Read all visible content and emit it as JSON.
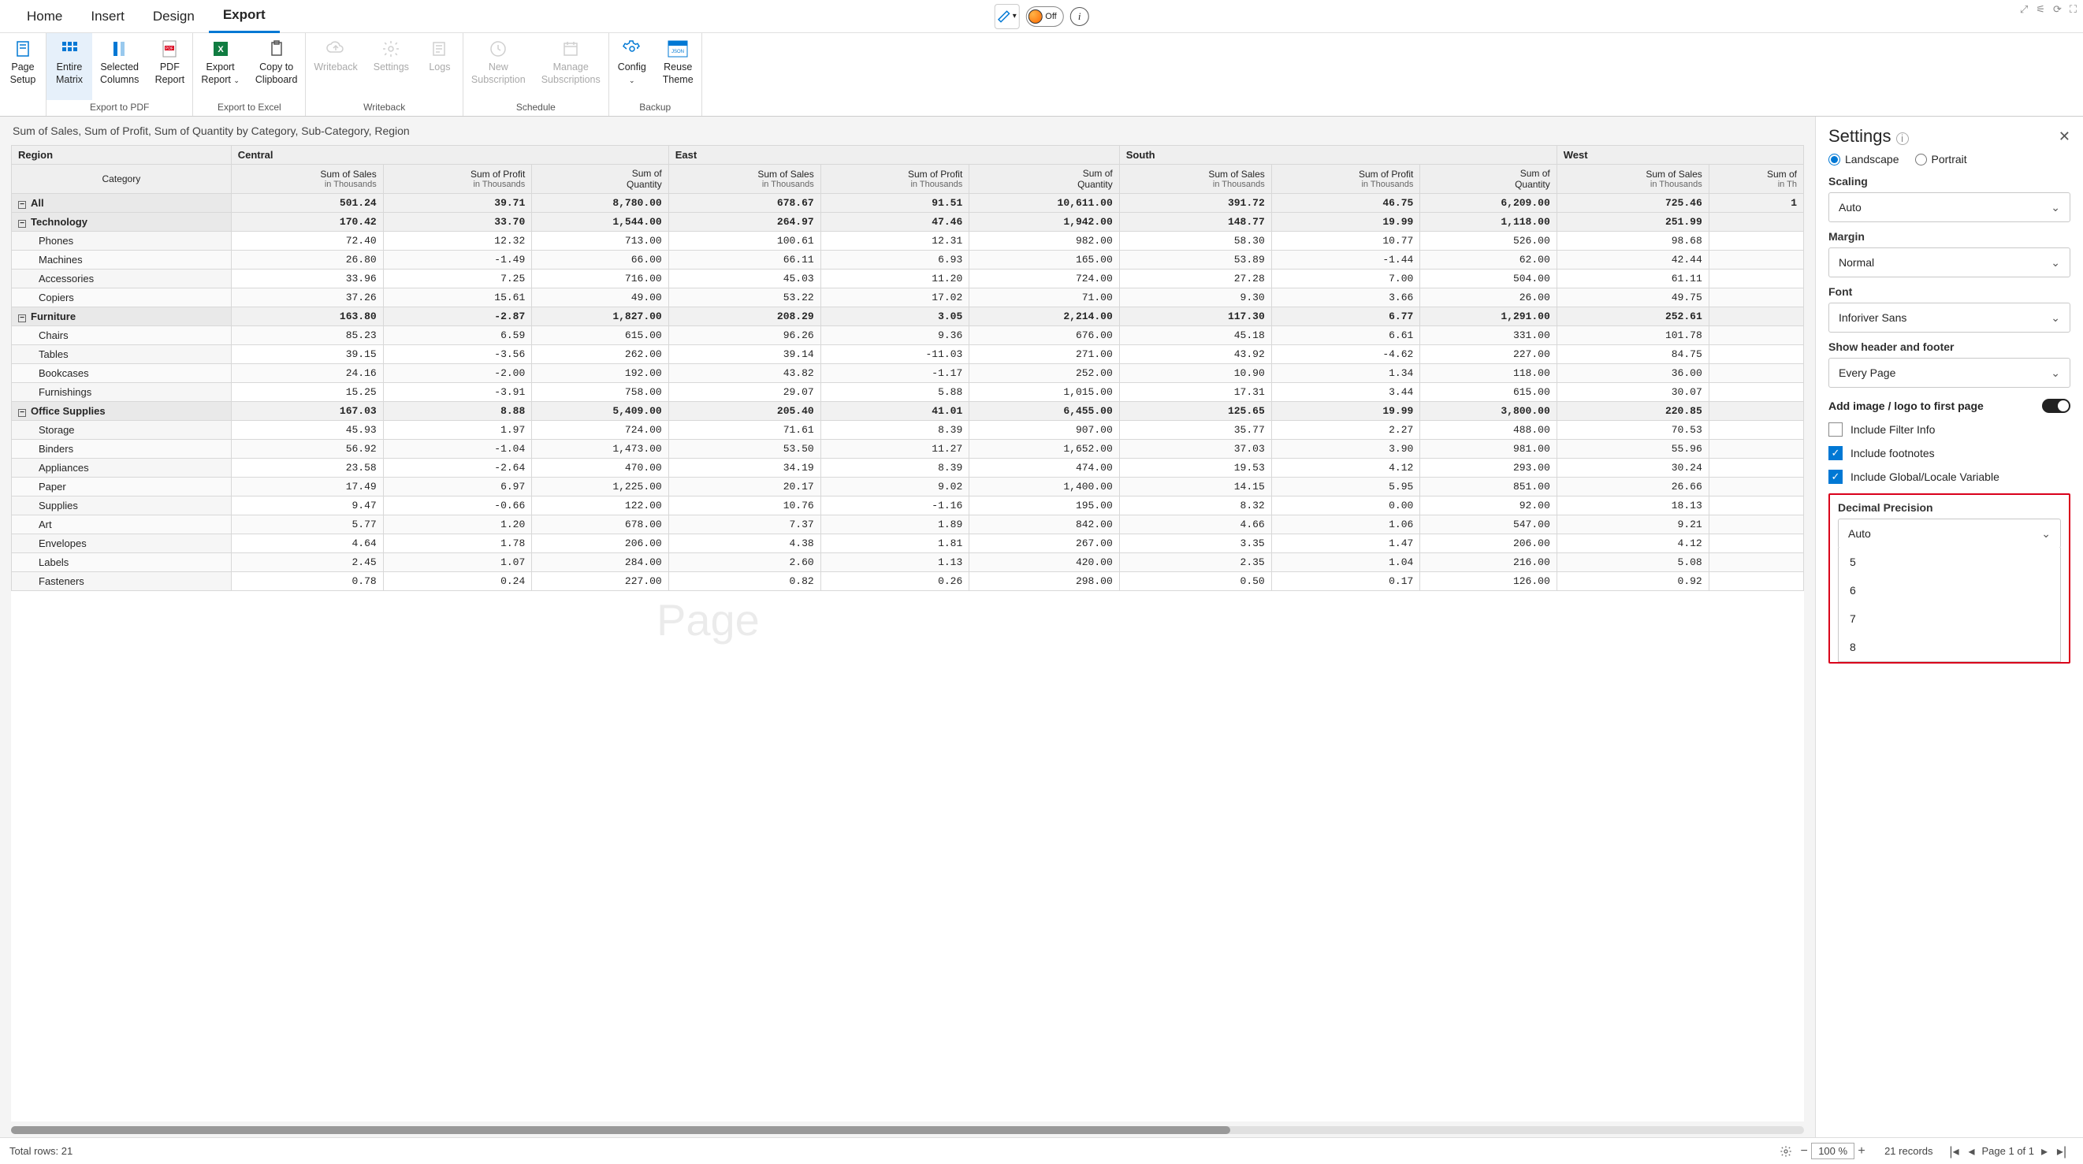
{
  "tabs": {
    "home": "Home",
    "insert": "Insert",
    "design": "Design",
    "export": "Export"
  },
  "topToggle": "Off",
  "ribbon": {
    "pageSetup": "Page\nSetup",
    "entireMatrix": "Entire\nMatrix",
    "selectedColumns": "Selected\nColumns",
    "pdfReport": "PDF\nReport",
    "exportReport": "Export\nReport",
    "copyClipboard": "Copy to\nClipboard",
    "writeback": "Writeback",
    "settings": "Settings",
    "logs": "Logs",
    "newSub": "New\nSubscription",
    "manageSub": "Manage\nSubscriptions",
    "config": "Config",
    "reuseTheme": "Reuse\nTheme",
    "groups": {
      "pdf": "Export to PDF",
      "excel": "Export to Excel",
      "writeback": "Writeback",
      "schedule": "Schedule",
      "backup": "Backup"
    }
  },
  "subtitle": "Sum of Sales, Sum of Profit, Sum of Quantity by Category, Sub-Category, Region",
  "watermark": "Page",
  "headers": {
    "region": "Region",
    "category": "Category",
    "regions": [
      "Central",
      "East",
      "South",
      "West"
    ],
    "measures": [
      {
        "label": "Sum of Sales",
        "unit": "in Thousands"
      },
      {
        "label": "Sum of Profit",
        "unit": "in Thousands"
      },
      {
        "label": "Sum of\nQuantity",
        "unit": ""
      }
    ],
    "westLastCol": {
      "label": "Sum of",
      "unit": "in Th"
    }
  },
  "rows": [
    {
      "type": "group",
      "label": "All",
      "vals": [
        "501.24",
        "39.71",
        "8,780.00",
        "678.67",
        "91.51",
        "10,611.00",
        "391.72",
        "46.75",
        "6,209.00",
        "725.46",
        "1"
      ]
    },
    {
      "type": "group",
      "label": "Technology",
      "vals": [
        "170.42",
        "33.70",
        "1,544.00",
        "264.97",
        "47.46",
        "1,942.00",
        "148.77",
        "19.99",
        "1,118.00",
        "251.99",
        ""
      ]
    },
    {
      "type": "leaf",
      "label": "Phones",
      "vals": [
        "72.40",
        "12.32",
        "713.00",
        "100.61",
        "12.31",
        "982.00",
        "58.30",
        "10.77",
        "526.00",
        "98.68",
        ""
      ]
    },
    {
      "type": "leaf",
      "label": "Machines",
      "vals": [
        "26.80",
        "-1.49",
        "66.00",
        "66.11",
        "6.93",
        "165.00",
        "53.89",
        "-1.44",
        "62.00",
        "42.44",
        ""
      ]
    },
    {
      "type": "leaf",
      "label": "Accessories",
      "vals": [
        "33.96",
        "7.25",
        "716.00",
        "45.03",
        "11.20",
        "724.00",
        "27.28",
        "7.00",
        "504.00",
        "61.11",
        ""
      ]
    },
    {
      "type": "leaf",
      "label": "Copiers",
      "vals": [
        "37.26",
        "15.61",
        "49.00",
        "53.22",
        "17.02",
        "71.00",
        "9.30",
        "3.66",
        "26.00",
        "49.75",
        ""
      ]
    },
    {
      "type": "group",
      "label": "Furniture",
      "vals": [
        "163.80",
        "-2.87",
        "1,827.00",
        "208.29",
        "3.05",
        "2,214.00",
        "117.30",
        "6.77",
        "1,291.00",
        "252.61",
        ""
      ]
    },
    {
      "type": "leaf",
      "label": "Chairs",
      "vals": [
        "85.23",
        "6.59",
        "615.00",
        "96.26",
        "9.36",
        "676.00",
        "45.18",
        "6.61",
        "331.00",
        "101.78",
        ""
      ]
    },
    {
      "type": "leaf",
      "label": "Tables",
      "vals": [
        "39.15",
        "-3.56",
        "262.00",
        "39.14",
        "-11.03",
        "271.00",
        "43.92",
        "-4.62",
        "227.00",
        "84.75",
        ""
      ]
    },
    {
      "type": "leaf",
      "label": "Bookcases",
      "vals": [
        "24.16",
        "-2.00",
        "192.00",
        "43.82",
        "-1.17",
        "252.00",
        "10.90",
        "1.34",
        "118.00",
        "36.00",
        ""
      ]
    },
    {
      "type": "leaf",
      "label": "Furnishings",
      "vals": [
        "15.25",
        "-3.91",
        "758.00",
        "29.07",
        "5.88",
        "1,015.00",
        "17.31",
        "3.44",
        "615.00",
        "30.07",
        ""
      ]
    },
    {
      "type": "group",
      "label": "Office Supplies",
      "vals": [
        "167.03",
        "8.88",
        "5,409.00",
        "205.40",
        "41.01",
        "6,455.00",
        "125.65",
        "19.99",
        "3,800.00",
        "220.85",
        ""
      ]
    },
    {
      "type": "leaf",
      "label": "Storage",
      "vals": [
        "45.93",
        "1.97",
        "724.00",
        "71.61",
        "8.39",
        "907.00",
        "35.77",
        "2.27",
        "488.00",
        "70.53",
        ""
      ]
    },
    {
      "type": "leaf",
      "label": "Binders",
      "vals": [
        "56.92",
        "-1.04",
        "1,473.00",
        "53.50",
        "11.27",
        "1,652.00",
        "37.03",
        "3.90",
        "981.00",
        "55.96",
        ""
      ]
    },
    {
      "type": "leaf",
      "label": "Appliances",
      "vals": [
        "23.58",
        "-2.64",
        "470.00",
        "34.19",
        "8.39",
        "474.00",
        "19.53",
        "4.12",
        "293.00",
        "30.24",
        ""
      ]
    },
    {
      "type": "leaf",
      "label": "Paper",
      "vals": [
        "17.49",
        "6.97",
        "1,225.00",
        "20.17",
        "9.02",
        "1,400.00",
        "14.15",
        "5.95",
        "851.00",
        "26.66",
        ""
      ]
    },
    {
      "type": "leaf",
      "label": "Supplies",
      "vals": [
        "9.47",
        "-0.66",
        "122.00",
        "10.76",
        "-1.16",
        "195.00",
        "8.32",
        "0.00",
        "92.00",
        "18.13",
        ""
      ]
    },
    {
      "type": "leaf",
      "label": "Art",
      "vals": [
        "5.77",
        "1.20",
        "678.00",
        "7.37",
        "1.89",
        "842.00",
        "4.66",
        "1.06",
        "547.00",
        "9.21",
        ""
      ]
    },
    {
      "type": "leaf",
      "label": "Envelopes",
      "vals": [
        "4.64",
        "1.78",
        "206.00",
        "4.38",
        "1.81",
        "267.00",
        "3.35",
        "1.47",
        "206.00",
        "4.12",
        ""
      ]
    },
    {
      "type": "leaf",
      "label": "Labels",
      "vals": [
        "2.45",
        "1.07",
        "284.00",
        "2.60",
        "1.13",
        "420.00",
        "2.35",
        "1.04",
        "216.00",
        "5.08",
        ""
      ]
    },
    {
      "type": "leaf",
      "label": "Fasteners",
      "vals": [
        "0.78",
        "0.24",
        "227.00",
        "0.82",
        "0.26",
        "298.00",
        "0.50",
        "0.17",
        "126.00",
        "0.92",
        ""
      ]
    }
  ],
  "status": {
    "totalRows": "Total rows: 21",
    "zoom": "100 %",
    "records": "21 records",
    "pageInfo": "Page 1 of 1"
  },
  "settings": {
    "title": "Settings",
    "orientation": {
      "landscape": "Landscape",
      "portrait": "Portrait"
    },
    "scaling": {
      "label": "Scaling",
      "value": "Auto"
    },
    "margin": {
      "label": "Margin",
      "value": "Normal"
    },
    "font": {
      "label": "Font",
      "value": "Inforiver Sans"
    },
    "showHeaderFooter": {
      "label": "Show header and footer",
      "value": "Every Page"
    },
    "addImage": "Add image / logo to first page",
    "includeFilter": "Include Filter Info",
    "includeFootnotes": "Include footnotes",
    "includeGlobal": "Include Global/Locale Variable",
    "decimalPrecision": {
      "label": "Decimal Precision",
      "value": "Auto",
      "options": [
        "5",
        "6",
        "7",
        "8"
      ]
    }
  },
  "colors": {
    "accent": "#0078d4",
    "pdfRed": "#d9001b",
    "excelGreen": "#107c41"
  }
}
